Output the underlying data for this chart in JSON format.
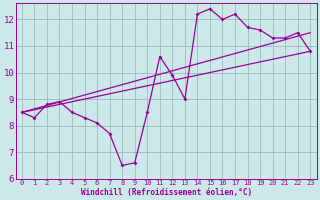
{
  "xlabel": "Windchill (Refroidissement éolien,°C)",
  "bg_color": "#cce8e8",
  "line_color": "#990099",
  "grid_color": "#99bbbb",
  "xlim": [
    -0.5,
    23.5
  ],
  "ylim": [
    6,
    12.6
  ],
  "yticks": [
    6,
    7,
    8,
    9,
    10,
    11,
    12
  ],
  "xticks": [
    0,
    1,
    2,
    3,
    4,
    5,
    6,
    7,
    8,
    9,
    10,
    11,
    12,
    13,
    14,
    15,
    16,
    17,
    18,
    19,
    20,
    21,
    22,
    23
  ],
  "line1_x": [
    0,
    1,
    2,
    3,
    4,
    5,
    6,
    7,
    8,
    9,
    10,
    11,
    12,
    13,
    14,
    15,
    16,
    17,
    18,
    19,
    20,
    21,
    22,
    23
  ],
  "line1_y": [
    8.5,
    8.3,
    8.8,
    8.9,
    8.5,
    8.3,
    8.1,
    7.7,
    6.5,
    6.6,
    8.5,
    10.6,
    9.9,
    9.0,
    12.2,
    12.4,
    12.0,
    12.2,
    11.7,
    11.6,
    11.3,
    11.3,
    11.5,
    10.8
  ],
  "line2_x": [
    0,
    23
  ],
  "line2_y": [
    8.5,
    11.5
  ],
  "line3_x": [
    0,
    23
  ],
  "line3_y": [
    8.5,
    10.8
  ],
  "tick_fontsize": 5.0,
  "xlabel_fontsize": 5.5
}
